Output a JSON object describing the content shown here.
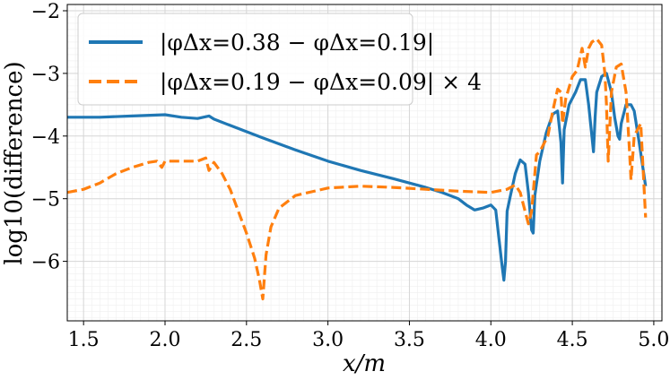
{
  "chart_data": {
    "type": "line",
    "xlabel": "x/m",
    "ylabel": "log10(difference)",
    "xlim": [
      1.4,
      5.05
    ],
    "ylim": [
      -6.95,
      -1.9
    ],
    "xticks": [
      "1.5",
      "2.0",
      "2.5",
      "3.0",
      "3.5",
      "4.0",
      "4.5",
      "5.0"
    ],
    "xtick_values": [
      1.5,
      2.0,
      2.5,
      3.0,
      3.5,
      4.0,
      4.5,
      5.0
    ],
    "yticks": [
      "−2",
      "−3",
      "−4",
      "−5",
      "−6"
    ],
    "ytick_values": [
      -2,
      -3,
      -4,
      -5,
      -6
    ],
    "grid": true,
    "legend_position": "top-left",
    "series": [
      {
        "name": "|φΔx=0.38 − φΔx=0.19|",
        "color": "#1f77b4",
        "dash": "solid",
        "x": [
          1.4,
          1.6,
          1.8,
          2.0,
          2.1,
          2.2,
          2.27,
          2.3,
          2.4,
          2.6,
          2.8,
          3.0,
          3.2,
          3.4,
          3.6,
          3.7,
          3.8,
          3.85,
          3.9,
          3.95,
          4.0,
          4.03,
          4.05,
          4.07,
          4.08,
          4.09,
          4.1,
          4.12,
          4.15,
          4.18,
          4.21,
          4.23,
          4.25,
          4.26,
          4.27,
          4.3,
          4.34,
          4.38,
          4.41,
          4.43,
          4.44,
          4.45,
          4.48,
          4.52,
          4.55,
          4.58,
          4.6,
          4.62,
          4.63,
          4.64,
          4.65,
          4.68,
          4.71,
          4.74,
          4.76,
          4.78,
          4.79,
          4.8,
          4.83,
          4.86,
          4.88,
          4.91,
          4.95
        ],
        "y": [
          -3.7,
          -3.7,
          -3.68,
          -3.66,
          -3.7,
          -3.72,
          -3.68,
          -3.73,
          -3.83,
          -4.03,
          -4.22,
          -4.4,
          -4.55,
          -4.68,
          -4.82,
          -4.9,
          -5.0,
          -5.1,
          -5.18,
          -5.15,
          -5.1,
          -5.18,
          -5.65,
          -6.1,
          -6.3,
          -6.0,
          -5.2,
          -4.95,
          -4.6,
          -4.38,
          -4.45,
          -4.9,
          -5.5,
          -5.55,
          -4.95,
          -4.4,
          -3.95,
          -3.65,
          -3.6,
          -4.1,
          -4.75,
          -3.9,
          -3.5,
          -3.3,
          -3.1,
          -3.1,
          -3.5,
          -4.0,
          -4.25,
          -3.7,
          -3.3,
          -3.05,
          -3.0,
          -3.3,
          -3.7,
          -4.0,
          -4.05,
          -3.8,
          -3.5,
          -3.5,
          -3.6,
          -4.1,
          -4.8
        ]
      },
      {
        "name": "|φΔx=0.19 − φΔx=0.09| × 4",
        "color": "#ff7f0e",
        "dash": "dashed",
        "x": [
          1.4,
          1.5,
          1.6,
          1.7,
          1.8,
          1.9,
          1.95,
          1.98,
          2.0,
          2.1,
          2.2,
          2.25,
          2.27,
          2.3,
          2.35,
          2.4,
          2.45,
          2.5,
          2.55,
          2.58,
          2.6,
          2.62,
          2.65,
          2.7,
          2.8,
          3.0,
          3.2,
          3.4,
          3.6,
          3.8,
          4.0,
          4.1,
          4.15,
          4.18,
          4.2,
          4.23,
          4.25,
          4.27,
          4.28,
          4.3,
          4.35,
          4.38,
          4.41,
          4.43,
          4.44,
          4.46,
          4.5,
          4.53,
          4.56,
          4.58,
          4.6,
          4.62,
          4.65,
          4.68,
          4.7,
          4.71,
          4.72,
          4.74,
          4.77,
          4.8,
          4.83,
          4.85,
          4.86,
          4.88,
          4.92,
          4.95
        ],
        "y": [
          -4.9,
          -4.85,
          -4.75,
          -4.6,
          -4.5,
          -4.42,
          -4.4,
          -4.5,
          -4.4,
          -4.4,
          -4.4,
          -4.35,
          -4.55,
          -4.42,
          -4.6,
          -4.85,
          -5.2,
          -5.55,
          -5.95,
          -6.3,
          -6.6,
          -5.9,
          -5.45,
          -5.15,
          -4.95,
          -4.83,
          -4.8,
          -4.82,
          -4.85,
          -4.88,
          -4.9,
          -4.85,
          -4.78,
          -4.9,
          -5.1,
          -5.4,
          -5.2,
          -4.6,
          -4.3,
          -4.25,
          -4.0,
          -3.6,
          -3.25,
          -3.3,
          -3.8,
          -3.4,
          -3.05,
          -2.95,
          -2.6,
          -2.9,
          -2.6,
          -2.5,
          -2.45,
          -2.55,
          -3.0,
          -3.5,
          -4.4,
          -3.3,
          -2.9,
          -2.85,
          -3.3,
          -4.2,
          -4.7,
          -4.0,
          -3.8,
          -5.3
        ]
      }
    ]
  }
}
